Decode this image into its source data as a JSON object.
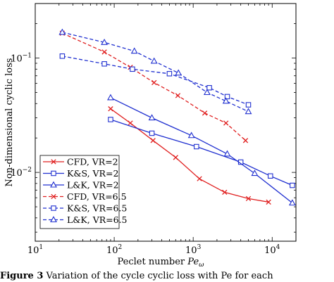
{
  "chart_data": {
    "type": "line",
    "xscale": "log",
    "yscale": "log",
    "xlim": [
      10,
      20000
    ],
    "ylim": [
      0.0025,
      0.3
    ],
    "xlabel": "Peclet number ",
    "xlabel_symbol": "Pe",
    "xlabel_subscript": "ω",
    "ylabel": "Non-dimensional cyclic loss",
    "x_ticks": [
      {
        "value": 10,
        "base": "10",
        "exp": "1"
      },
      {
        "value": 100,
        "base": "10",
        "exp": "2"
      },
      {
        "value": 1000,
        "base": "10",
        "exp": "3"
      },
      {
        "value": 10000,
        "base": "10",
        "exp": "4"
      }
    ],
    "y_ticks": [
      {
        "value": 0.01,
        "base": "10",
        "exp": "−2"
      },
      {
        "value": 0.1,
        "base": "10",
        "exp": "−1"
      }
    ],
    "grid": false,
    "legend_position": "bottom-left",
    "series": [
      {
        "name": "CFD, VR=2",
        "color": "#e02020",
        "dash": "solid",
        "marker": "x",
        "points": [
          [
            90,
            0.036
          ],
          [
            160,
            0.027
          ],
          [
            310,
            0.019
          ],
          [
            600,
            0.0135
          ],
          [
            1200,
            0.0088
          ],
          [
            2500,
            0.0067
          ],
          [
            5000,
            0.0059
          ],
          [
            9000,
            0.0055
          ]
        ]
      },
      {
        "name": "K&S, VR=2",
        "color": "#2030d0",
        "dash": "solid",
        "marker": "square",
        "points": [
          [
            90,
            0.029
          ],
          [
            300,
            0.022
          ],
          [
            1100,
            0.0168
          ],
          [
            4000,
            0.0123
          ],
          [
            9500,
            0.0093
          ],
          [
            18000,
            0.0077
          ]
        ]
      },
      {
        "name": "L&K, VR=2",
        "color": "#2030d0",
        "dash": "solid",
        "marker": "triangle",
        "points": [
          [
            90,
            0.045
          ],
          [
            300,
            0.03
          ],
          [
            950,
            0.021
          ],
          [
            2700,
            0.0145
          ],
          [
            6000,
            0.0098
          ],
          [
            18000,
            0.0054
          ]
        ]
      },
      {
        "name": "CFD, VR=6.5",
        "color": "#e02020",
        "dash": "dashed",
        "marker": "x",
        "points": [
          [
            22,
            0.165
          ],
          [
            75,
            0.113
          ],
          [
            160,
            0.083
          ],
          [
            320,
            0.061
          ],
          [
            640,
            0.047
          ],
          [
            1400,
            0.033
          ],
          [
            2600,
            0.027
          ],
          [
            4600,
            0.019
          ]
        ]
      },
      {
        "name": "K&S, VR=6.5",
        "color": "#2030d0",
        "dash": "dashed",
        "marker": "square",
        "points": [
          [
            22,
            0.104
          ],
          [
            75,
            0.089
          ],
          [
            170,
            0.08
          ],
          [
            500,
            0.073
          ],
          [
            1600,
            0.055
          ],
          [
            2700,
            0.046
          ],
          [
            5000,
            0.039
          ]
        ]
      },
      {
        "name": "L&K, VR=6.5",
        "color": "#2030d0",
        "dash": "dashed",
        "marker": "triangle",
        "points": [
          [
            22,
            0.168
          ],
          [
            75,
            0.137
          ],
          [
            180,
            0.115
          ],
          [
            320,
            0.094
          ],
          [
            650,
            0.074
          ],
          [
            1500,
            0.05
          ],
          [
            2600,
            0.042
          ],
          [
            5000,
            0.034
          ]
        ]
      }
    ]
  },
  "caption": {
    "prefix": "Figure 3",
    "text": " Variation of the cycle cyclic loss with Pe for each"
  }
}
